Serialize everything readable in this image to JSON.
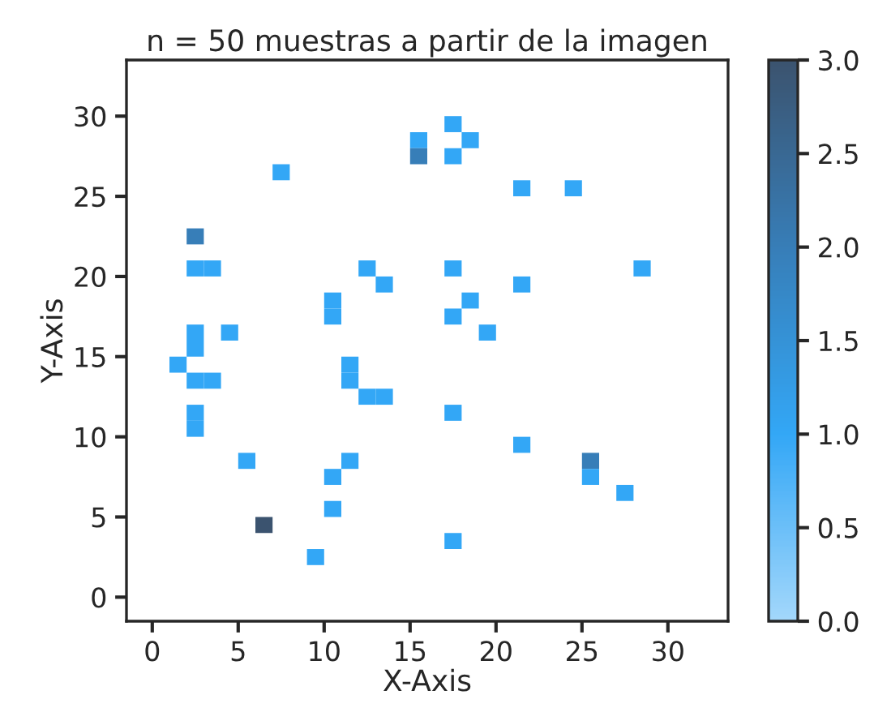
{
  "chart_data": {
    "type": "scatter",
    "title": "n = 50 muestras a partir de la imagen",
    "xlabel": "X-Axis",
    "ylabel": "Y-Axis",
    "marker": "square",
    "grid": false,
    "legend": false,
    "series": [
      {
        "colors": [
          "#33a7f6",
          "#33a7f6",
          "#33a7f6",
          "#377eb8",
          "#33a7f6",
          "#33a7f6",
          "#33a7f6",
          "#33a7f6",
          "#377eb8",
          "#33a7f6",
          "#33a7f6",
          "#33a7f6",
          "#33a7f6",
          "#33a7f6",
          "#33a7f6",
          "#33a7f6",
          "#33a7f6",
          "#33a7f6",
          "#33a7f6",
          "#33a7f6",
          "#33a7f6",
          "#33a7f6",
          "#33a7f6",
          "#33a7f6",
          "#33a7f6",
          "#33a7f6",
          "#33a7f6",
          "#33a7f6",
          "#33a7f6",
          "#33a7f6",
          "#33a7f6",
          "#33a7f6",
          "#33a7f6",
          "#33a7f6",
          "#33a7f6",
          "#33a7f6",
          "#33a7f6",
          "#377eb8",
          "#33a7f6",
          "#33a7f6",
          "#33a7f6",
          "#33a7f6",
          "#3b536f",
          "#33a7f6",
          "#33a7f6"
        ],
        "x": [
          17.5,
          15.5,
          18.5,
          15.5,
          17.5,
          7.5,
          21.5,
          24.5,
          2.5,
          2.5,
          3.5,
          12.5,
          17.5,
          28.5,
          13.5,
          21.5,
          10.5,
          18.5,
          10.5,
          17.5,
          2.5,
          4.5,
          19.5,
          2.5,
          1.5,
          11.5,
          2.5,
          3.5,
          11.5,
          12.5,
          13.5,
          17.5,
          2.5,
          2.5,
          21.5,
          5.5,
          11.5,
          25.5,
          10.5,
          25.5,
          27.5,
          10.5,
          6.5,
          17.5,
          9.5
        ],
        "values": [
          29.5,
          28.5,
          28.5,
          27.5,
          27.5,
          26.5,
          25.5,
          25.5,
          22.5,
          20.5,
          20.5,
          20.5,
          20.5,
          20.5,
          19.5,
          19.5,
          18.5,
          18.5,
          17.5,
          17.5,
          16.5,
          16.5,
          16.5,
          15.5,
          14.5,
          14.5,
          13.5,
          13.5,
          13.5,
          12.5,
          12.5,
          11.5,
          11.5,
          10.5,
          9.5,
          8.5,
          8.5,
          8.5,
          7.5,
          7.5,
          6.5,
          5.5,
          4.5,
          3.5,
          2.5
        ],
        "cvalues": [
          1,
          1,
          1,
          2,
          1,
          1,
          1,
          1,
          2,
          1,
          1,
          1,
          1,
          1,
          1,
          1,
          1,
          1,
          1,
          1,
          1,
          1,
          1,
          1,
          1,
          1,
          1,
          1,
          1,
          1,
          1,
          1,
          1,
          1,
          1,
          1,
          1,
          2,
          1,
          1,
          1,
          1,
          3,
          1,
          1
        ]
      }
    ],
    "xlim": [
      -1.5,
      33.5
    ],
    "ylim": [
      -1.5,
      33.5
    ],
    "xticks": [
      0,
      5,
      10,
      15,
      20,
      25,
      30
    ],
    "yticks": [
      0,
      5,
      10,
      15,
      20,
      25,
      30
    ],
    "clim": [
      0,
      3
    ],
    "cticks": [
      {
        "value": 0,
        "label": "0.0"
      },
      {
        "value": 0.5,
        "label": "0.5"
      },
      {
        "value": 1,
        "label": "1.0"
      },
      {
        "value": 1.5,
        "label": "1.5"
      },
      {
        "value": 2,
        "label": "2.0"
      },
      {
        "value": 2.5,
        "label": "2.5"
      },
      {
        "value": 3,
        "label": "3.0"
      }
    ]
  }
}
